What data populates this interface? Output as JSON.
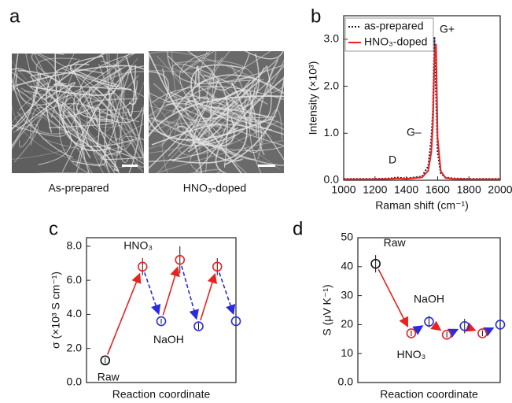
{
  "panel_a": {
    "label": "a",
    "captions": [
      "As-prepared",
      "HNO₃-doped"
    ]
  },
  "chart_data": [
    {
      "type": "line",
      "label": "b",
      "xlabel": "Raman shift (cm⁻¹)",
      "ylabel": "Intensity (×10³)",
      "x": [
        1000,
        1100,
        1200,
        1300,
        1340,
        1400,
        1500,
        1540,
        1560,
        1570,
        1580,
        1590,
        1600,
        1620,
        1650,
        1700,
        1800,
        1900,
        2000
      ],
      "series": [
        {
          "name": "as-prepared",
          "color": "#1a1a4a",
          "style": "dotted",
          "values": [
            0.03,
            0.03,
            0.03,
            0.04,
            0.06,
            0.04,
            0.08,
            0.3,
            0.9,
            1.5,
            3.05,
            1.8,
            0.6,
            0.15,
            0.06,
            0.04,
            0.03,
            0.03,
            0.03
          ]
        },
        {
          "name": "HNO₃-doped",
          "color": "#e8231f",
          "style": "solid",
          "values": [
            0.02,
            0.02,
            0.02,
            0.03,
            0.04,
            0.03,
            0.06,
            0.2,
            0.6,
            1.2,
            2.6,
            2.9,
            0.9,
            0.2,
            0.05,
            0.03,
            0.02,
            0.02,
            0.02
          ]
        }
      ],
      "xlim": [
        1000,
        2000
      ],
      "xticks": [
        1000,
        1200,
        1400,
        1600,
        1800,
        2000
      ],
      "ylim": [
        0,
        3.5
      ],
      "yticks": [
        {
          "value": 0,
          "label": "0.0"
        },
        {
          "value": 1,
          "label": "1.0"
        },
        {
          "value": 2,
          "label": "2.0"
        },
        {
          "value": 3,
          "label": "3.0"
        }
      ],
      "annotations": [
        "D",
        "G–",
        "G+"
      ],
      "legend": "top-left"
    },
    {
      "type": "scatter",
      "label": "c",
      "xlabel": "Reaction coordinate",
      "ylabel": "σ (×10³ S cm⁻¹)",
      "xlim": [
        0,
        8
      ],
      "ylim": [
        0,
        8.5
      ],
      "yticks": [
        {
          "value": 0,
          "label": "0.0"
        },
        {
          "value": 2,
          "label": "2.0"
        },
        {
          "value": 4,
          "label": "4.0"
        },
        {
          "value": 6,
          "label": "6.0"
        },
        {
          "value": 8,
          "label": "8.0"
        }
      ],
      "series": [
        {
          "name": "Raw",
          "color": "#111111",
          "x": [
            1
          ],
          "values": [
            1.3
          ],
          "errors": [
            0.15
          ]
        },
        {
          "name": "HNO₃",
          "color": "#e8231f",
          "x": [
            3,
            5,
            7
          ],
          "values": [
            6.8,
            7.2,
            6.8
          ],
          "errors": [
            0.5,
            0.8,
            0.5
          ]
        },
        {
          "name": "NaOH",
          "color": "#2a2ae0",
          "x": [
            4,
            6,
            8
          ],
          "values": [
            3.6,
            3.3,
            3.6
          ],
          "errors": [
            0.15,
            0.2,
            0.2
          ]
        }
      ]
    },
    {
      "type": "scatter",
      "label": "d",
      "xlabel": "Reaction coordinate",
      "ylabel": "S (μV K⁻¹)",
      "xlim": [
        0,
        8
      ],
      "ylim": [
        0,
        50
      ],
      "yticks": [
        {
          "value": 0,
          "label": "0.0"
        },
        10,
        20,
        30,
        40,
        50
      ],
      "series": [
        {
          "name": "Raw",
          "color": "#111111",
          "x": [
            1
          ],
          "values": [
            41
          ],
          "errors": [
            3
          ]
        },
        {
          "name": "HNO₃",
          "color": "#e8231f",
          "x": [
            3,
            5,
            7
          ],
          "values": [
            17,
            16.5,
            17
          ],
          "errors": [
            1,
            1,
            1
          ]
        },
        {
          "name": "NaOH",
          "color": "#2a2ae0",
          "x": [
            4,
            6,
            8
          ],
          "values": [
            21,
            19.5,
            20
          ],
          "errors": [
            2,
            2.5,
            1.2
          ]
        }
      ]
    }
  ]
}
